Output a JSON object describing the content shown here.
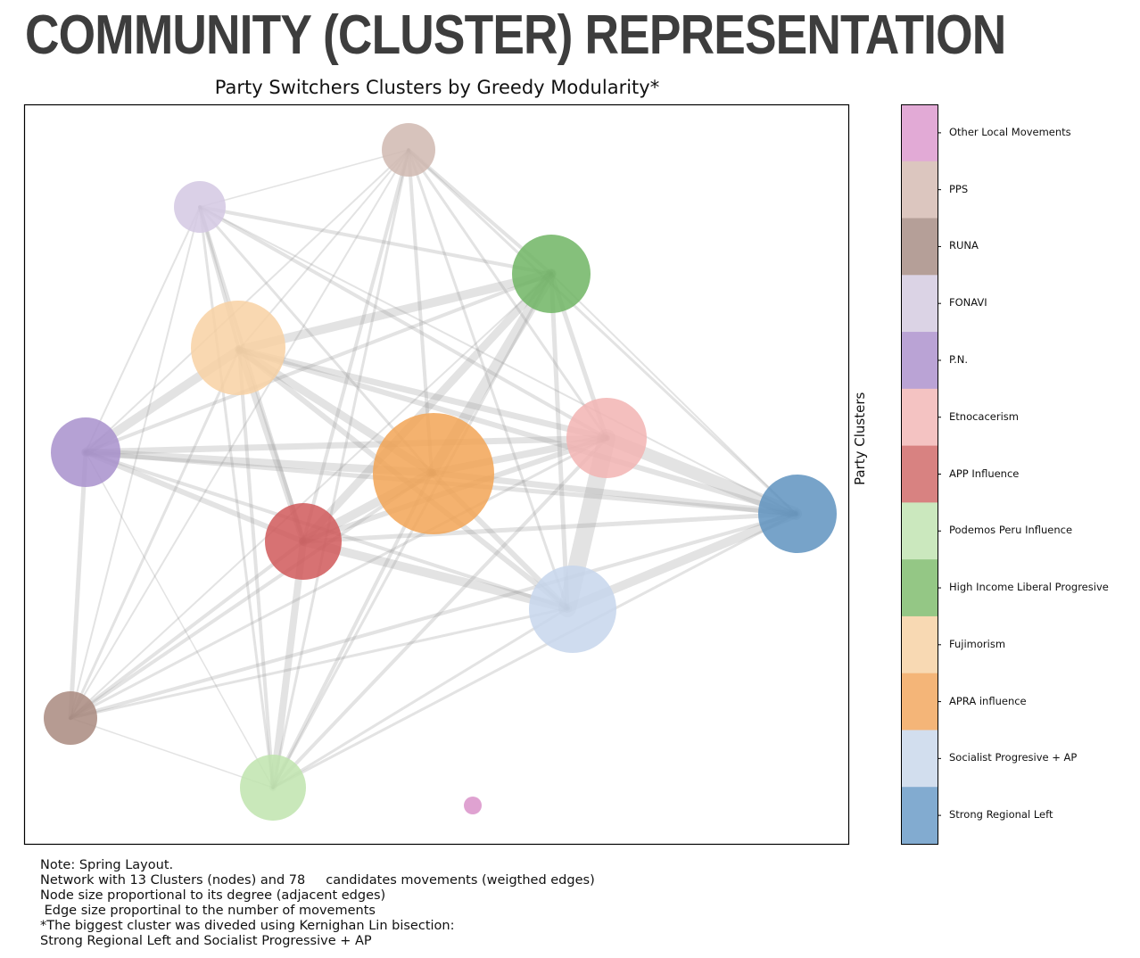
{
  "heading": "COMMUNITY (CLUSTER) REPRESENTATION",
  "title": "Party Switchers Clusters by Greedy Modularity*",
  "colorbar_label": "Party Clusters",
  "clusters": [
    {
      "name": "Other Local Movements",
      "color": "#e2aad6"
    },
    {
      "name": "PPS",
      "color": "#dcc6bf"
    },
    {
      "name": "RUNA",
      "color": "#b59f98"
    },
    {
      "name": "FONAVI",
      "color": "#dbd3e5"
    },
    {
      "name": "P.N.",
      "color": "#baa3d5"
    },
    {
      "name": "Etnocacerism",
      "color": "#f4c3c2"
    },
    {
      "name": "APP Influence",
      "color": "#d88281"
    },
    {
      "name": "Podemos Peru Influence",
      "color": "#cbe8be"
    },
    {
      "name": "High Income Liberal Progresive",
      "color": "#94c785"
    },
    {
      "name": "Fujimorism",
      "color": "#f8d9b3"
    },
    {
      "name": "APRA influence",
      "color": "#f4b578"
    },
    {
      "name": "Socialist Progresive + AP",
      "color": "#d2deee"
    },
    {
      "name": "Strong Regional Left",
      "color": "#82abd0"
    }
  ],
  "nodes": [
    {
      "cluster": "Other Local Movements",
      "color": "#d992c9"
    },
    {
      "cluster": "PPS",
      "color": "#d0b9b0"
    },
    {
      "cluster": "RUNA",
      "color": "#a98a7f"
    },
    {
      "cluster": "FONAVI",
      "color": "#d4c8e3"
    },
    {
      "cluster": "P.N.",
      "color": "#a891cc"
    },
    {
      "cluster": "Etnocacerism",
      "color": "#f2b4b3"
    },
    {
      "cluster": "APP Influence",
      "color": "#d0595a"
    },
    {
      "cluster": "Podemos Peru Influence",
      "color": "#bfe4ae"
    },
    {
      "cluster": "High Income Liberal Progresive",
      "color": "#70b564"
    },
    {
      "cluster": "Fujimorism",
      "color": "#f8d1a3"
    },
    {
      "cluster": "APRA influence",
      "color": "#f2a456"
    },
    {
      "cluster": "Socialist Progresive + AP",
      "color": "#c7d6ec"
    },
    {
      "cluster": "Strong Regional Left",
      "color": "#5f93c0"
    }
  ],
  "note": [
    "Note: Spring Layout.",
    "Network with 13 Clusters (nodes) and 78     candidates movements (weigthed edges)",
    "Node size proportional to its degree (adjacent edges)",
    " Edge size proportinal to the number of movements",
    "*The biggest cluster was diveded using Kernighan Lin bisection:",
    "Strong Regional Left and Socialist Progressive + AP"
  ]
}
